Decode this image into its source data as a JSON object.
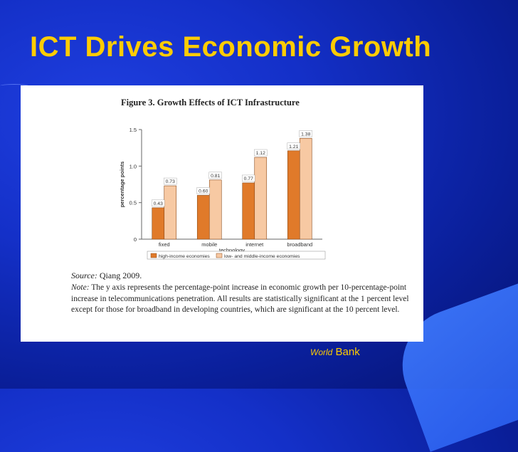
{
  "slide": {
    "title": "ICT Drives Economic Growth",
    "credit_prefix": "World",
    "credit_suffix": " Bank"
  },
  "figure": {
    "title": "Figure 3. Growth Effects of ICT Infrastructure",
    "source_label": "Source:",
    "source_text": " Qiang 2009.",
    "note_label": "Note:",
    "note_text": " The y axis represents the percentage-point increase in economic growth per 10-percentage-point increase in telecommunications penetration. All results are statistically significant at the 1 percent level except for those for broadband in developing countries, which are significant at the 10 percent level."
  },
  "colors": {
    "high_income": "#e07a2a",
    "low_middle_income": "#f7c9a3"
  },
  "chart_data": {
    "type": "bar",
    "categories": [
      "fixed",
      "mobile",
      "internet",
      "broadband"
    ],
    "series": [
      {
        "name": "high-income economies",
        "values": [
          0.43,
          0.6,
          0.77,
          1.21
        ]
      },
      {
        "name": "low- and middle-income economies",
        "values": [
          0.73,
          0.81,
          1.12,
          1.38
        ]
      }
    ],
    "data_labels": [
      [
        "0.43",
        "0.60",
        "0.77",
        "1.21"
      ],
      [
        "0.73",
        "0.81",
        "1.12",
        "1.38"
      ]
    ],
    "xlabel": "technology",
    "ylabel": "percentage points",
    "ylim": [
      0,
      1.5
    ],
    "yticks": [
      0,
      0.5,
      1.0,
      1.5
    ],
    "ytick_labels": [
      "0",
      "0.5",
      "1.0",
      "1.5"
    ],
    "grid": false,
    "legend_position": "bottom"
  }
}
